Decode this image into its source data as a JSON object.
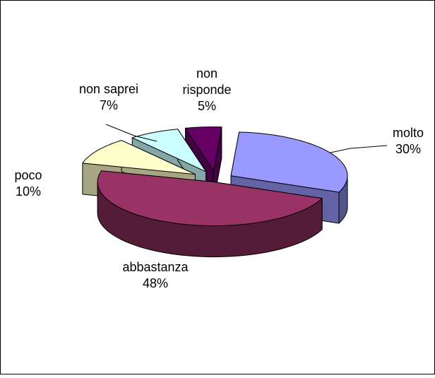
{
  "chart_data": {
    "type": "pie",
    "style": "3d-exploded",
    "categories": [
      "molto",
      "abbastanza",
      "poco",
      "non saprei",
      "non risponde"
    ],
    "values": [
      30,
      48,
      10,
      7,
      5
    ],
    "value_labels": [
      "30%",
      "48%",
      "10%",
      "7%",
      "5%"
    ],
    "label_lines": [
      [
        "molto"
      ],
      [
        "abbastanza"
      ],
      [
        "poco"
      ],
      [
        "non saprei"
      ],
      [
        "non",
        "risponde"
      ]
    ],
    "colors": [
      "#9999ff",
      "#993366",
      "#ffffcc",
      "#ccffff",
      "#660066"
    ],
    "title": "",
    "legend": "none"
  }
}
